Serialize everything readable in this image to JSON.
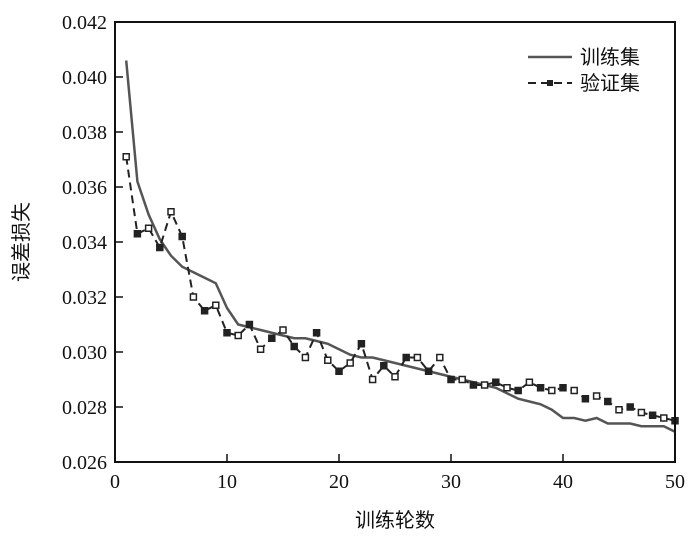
{
  "chart_data": {
    "type": "line",
    "title": "",
    "xlabel": "训练轮数",
    "ylabel": "误差损失",
    "xlim": [
      0,
      50
    ],
    "ylim": [
      0.026,
      0.042
    ],
    "xticks": [
      "0",
      "10",
      "20",
      "30",
      "40",
      "50"
    ],
    "yticks": [
      "0.026",
      "0.028",
      "0.030",
      "0.032",
      "0.034",
      "0.036",
      "0.038",
      "0.040",
      "0.042"
    ],
    "legend_position": "top-right",
    "x": [
      1,
      2,
      3,
      4,
      5,
      6,
      7,
      8,
      9,
      10,
      11,
      12,
      13,
      14,
      15,
      16,
      17,
      18,
      19,
      20,
      21,
      22,
      23,
      24,
      25,
      26,
      27,
      28,
      29,
      30,
      31,
      32,
      33,
      34,
      35,
      36,
      37,
      38,
      39,
      40,
      41,
      42,
      43,
      44,
      45,
      46,
      47,
      48,
      49,
      50
    ],
    "series": [
      {
        "name": "训练集",
        "style": "solid",
        "color": "#555555",
        "values": [
          0.0406,
          0.0362,
          0.035,
          0.0341,
          0.0335,
          0.0331,
          0.0329,
          0.0327,
          0.0325,
          0.0316,
          0.031,
          0.0309,
          0.0308,
          0.0307,
          0.0306,
          0.0305,
          0.0305,
          0.0304,
          0.0303,
          0.0301,
          0.0299,
          0.0298,
          0.0298,
          0.0297,
          0.0296,
          0.0295,
          0.0294,
          0.0293,
          0.0292,
          0.0291,
          0.029,
          0.0289,
          0.0288,
          0.0287,
          0.0285,
          0.0283,
          0.0282,
          0.0281,
          0.0279,
          0.0276,
          0.0276,
          0.0275,
          0.0276,
          0.0274,
          0.0274,
          0.0274,
          0.0273,
          0.0273,
          0.0273,
          0.0271
        ]
      },
      {
        "name": "验证集",
        "style": "dashed-square-markers",
        "color": "#222222",
        "values": [
          0.0371,
          0.0343,
          0.0345,
          0.0338,
          0.0351,
          0.0342,
          0.032,
          0.0315,
          0.0317,
          0.0307,
          0.0306,
          0.031,
          0.0301,
          0.0305,
          0.0308,
          0.0302,
          0.0298,
          0.0307,
          0.0297,
          0.0293,
          0.0296,
          0.0303,
          0.029,
          0.0295,
          0.0291,
          0.0298,
          0.0298,
          0.0293,
          0.0298,
          0.029,
          0.029,
          0.0288,
          0.0288,
          0.0289,
          0.0287,
          0.0286,
          0.0289,
          0.0287,
          0.0286,
          0.0287,
          0.0286,
          0.0283,
          0.0284,
          0.0282,
          0.0279,
          0.028,
          0.0278,
          0.0277,
          0.0276,
          0.0275
        ]
      }
    ]
  }
}
